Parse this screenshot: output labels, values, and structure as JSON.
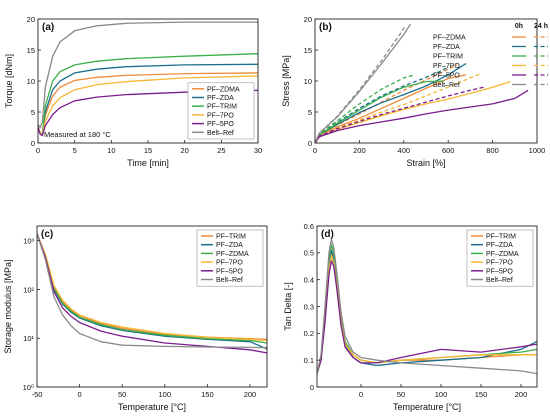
{
  "chart_data": [
    {
      "type": "line",
      "panel": "(a)",
      "xlabel": "Time [min]",
      "ylabel": "Torque [dNm]",
      "xlim": [
        0,
        30
      ],
      "ylim": [
        0,
        20
      ],
      "xticks": [
        0,
        5,
        10,
        15,
        20,
        25,
        30
      ],
      "yticks": [
        0,
        5,
        10,
        15,
        20
      ],
      "annotation": "Measured at 180 °C",
      "legend_position": "bottom-right",
      "series": [
        {
          "name": "PF–ZDMA",
          "color": "#f08b3b",
          "x": [
            0,
            0.3,
            0.6,
            1,
            2,
            3,
            5,
            8,
            12,
            20,
            30
          ],
          "y": [
            2.6,
            1.6,
            1.5,
            4.5,
            7.6,
            9.0,
            10.1,
            10.6,
            10.9,
            11.2,
            11.3
          ]
        },
        {
          "name": "PF–ZDA",
          "color": "#1c6f8c",
          "x": [
            0,
            0.3,
            0.6,
            1,
            2,
            3,
            5,
            8,
            12,
            20,
            30
          ],
          "y": [
            2.6,
            1.6,
            1.5,
            5.0,
            8.6,
            10.0,
            11.3,
            11.9,
            12.3,
            12.6,
            12.7
          ]
        },
        {
          "name": "PF–TRIM",
          "color": "#3cb04a",
          "x": [
            0,
            0.3,
            0.6,
            1,
            2,
            3,
            5,
            8,
            12,
            20,
            30
          ],
          "y": [
            2.6,
            1.6,
            1.5,
            6.0,
            10.0,
            11.5,
            12.6,
            13.2,
            13.6,
            14.0,
            14.4
          ]
        },
        {
          "name": "PF–7PO",
          "color": "#f7b733",
          "x": [
            0,
            0.3,
            0.6,
            1,
            2,
            3,
            5,
            8,
            12,
            20,
            30
          ],
          "y": [
            2.6,
            1.6,
            1.4,
            3.5,
            6.0,
            7.3,
            8.6,
            9.4,
            9.9,
            10.5,
            10.8
          ]
        },
        {
          "name": "PF–5PO",
          "color": "#7b1d8e",
          "x": [
            0,
            0.3,
            0.6,
            1,
            2,
            3,
            5,
            8,
            12,
            20,
            30
          ],
          "y": [
            2.6,
            1.4,
            1.2,
            2.8,
            4.6,
            5.7,
            6.8,
            7.4,
            7.8,
            8.2,
            8.5
          ]
        },
        {
          "name": "Belt–Ref",
          "color": "#8a8a8a",
          "x": [
            0,
            0.3,
            0.6,
            1,
            2,
            3,
            5,
            8,
            12,
            20,
            30
          ],
          "y": [
            3.0,
            2.5,
            3.5,
            9.0,
            14.0,
            16.3,
            18.1,
            18.9,
            19.3,
            19.5,
            19.5
          ]
        }
      ]
    },
    {
      "type": "line",
      "panel": "(b)",
      "xlabel": "Strain [%]",
      "ylabel": "Stress [MPa]",
      "xlim": [
        0,
        1000
      ],
      "ylim": [
        0,
        20
      ],
      "xticks": [
        0,
        200,
        400,
        600,
        800,
        1000
      ],
      "yticks": [
        0,
        5,
        10,
        15,
        20
      ],
      "legend_header": [
        "0h",
        "24 h"
      ],
      "legend_position": "top-right",
      "series": [
        {
          "name": "PF–ZDMA",
          "aging": "0h",
          "color": "#f08b3b",
          "x": [
            0,
            20,
            100,
            200,
            300,
            400,
            500,
            600,
            680
          ],
          "y": [
            0,
            1.2,
            2.6,
            4.0,
            5.6,
            7.2,
            8.8,
            10.4,
            11.0
          ]
        },
        {
          "name": "PF–ZDMA",
          "aging": "24 h",
          "color": "#f08b3b",
          "x": [
            0,
            20,
            100,
            200,
            300,
            400,
            500,
            600,
            640
          ],
          "y": [
            0,
            1.3,
            2.9,
            4.7,
            6.6,
            8.5,
            10.2,
            11.9,
            12.6
          ]
        },
        {
          "name": "PF–ZDA",
          "aging": "0h",
          "color": "#1c6f8c",
          "x": [
            0,
            20,
            100,
            200,
            300,
            400,
            500,
            600,
            680
          ],
          "y": [
            0,
            1.3,
            3.0,
            4.9,
            6.5,
            7.8,
            9.2,
            11.0,
            12.8
          ]
        },
        {
          "name": "PF–ZDA",
          "aging": "24 h",
          "color": "#1c6f8c",
          "x": [
            0,
            20,
            100,
            200,
            300,
            400,
            500,
            560,
            600
          ],
          "y": [
            0,
            1.4,
            3.3,
            5.6,
            7.6,
            9.2,
            10.6,
            11.5,
            12.2
          ]
        },
        {
          "name": "PF–TRIM",
          "aging": "0h",
          "color": "#3cb04a",
          "x": [
            0,
            20,
            100,
            200,
            300,
            400,
            500,
            580
          ],
          "y": [
            0,
            1.3,
            3.2,
            5.3,
            7.4,
            9.0,
            9.9,
            10.0
          ]
        },
        {
          "name": "PF–TRIM",
          "aging": "24 h",
          "color": "#3cb04a",
          "x": [
            0,
            20,
            100,
            200,
            300,
            400,
            450
          ],
          "y": [
            0,
            1.5,
            3.6,
            6.3,
            8.7,
            10.5,
            11.0
          ]
        },
        {
          "name": "PF–7PO",
          "aging": "0h",
          "color": "#f7b733",
          "x": [
            0,
            20,
            100,
            200,
            300,
            400,
            500,
            600,
            700,
            800,
            880
          ],
          "y": [
            0,
            1.0,
            2.2,
            3.3,
            4.4,
            5.4,
            6.3,
            7.1,
            8.0,
            9.0,
            9.9
          ]
        },
        {
          "name": "PF–7PO",
          "aging": "24 h",
          "color": "#f7b733",
          "x": [
            0,
            20,
            100,
            200,
            300,
            400,
            500,
            600,
            700,
            740
          ],
          "y": [
            0,
            1.1,
            2.4,
            3.7,
            5.0,
            6.2,
            7.6,
            9.0,
            10.5,
            11.1
          ]
        },
        {
          "name": "PF–5PO",
          "aging": "0h",
          "color": "#7b1d8e",
          "x": [
            0,
            20,
            100,
            200,
            300,
            400,
            500,
            600,
            700,
            800,
            900,
            960
          ],
          "y": [
            0,
            1.0,
            2.0,
            2.8,
            3.4,
            4.0,
            4.7,
            5.3,
            5.8,
            6.3,
            7.2,
            8.5
          ]
        },
        {
          "name": "PF–5PO",
          "aging": "24 h",
          "color": "#7b1d8e",
          "x": [
            0,
            20,
            100,
            200,
            300,
            400,
            500,
            600,
            700,
            760
          ],
          "y": [
            0,
            1.1,
            2.3,
            3.5,
            4.6,
            5.6,
            6.6,
            7.6,
            8.5,
            9.0
          ]
        },
        {
          "name": "Belt–Ref",
          "aging": "0h",
          "color": "#8a8a8a",
          "x": [
            0,
            20,
            100,
            200,
            300,
            400,
            430
          ],
          "y": [
            0,
            1.6,
            4.2,
            8.3,
            12.8,
            17.5,
            19.2
          ]
        },
        {
          "name": "Belt–Ref",
          "aging": "24 h",
          "color": "#8a8a8a",
          "x": [
            0,
            20,
            100,
            200,
            300,
            380,
            410
          ],
          "y": [
            0,
            1.6,
            4.3,
            8.6,
            13.3,
            17.4,
            19.0
          ]
        }
      ]
    },
    {
      "type": "line",
      "panel": "(c)",
      "xlabel": "Temperature [°C]",
      "ylabel": "Storage modulus [MPa]",
      "xlim": [
        -50,
        220
      ],
      "yscale": "log",
      "ylim": [
        1,
        2000
      ],
      "xticks": [
        -50,
        0,
        50,
        100,
        150,
        200
      ],
      "yticks": [
        1,
        10,
        100,
        1000
      ],
      "ytick_labels": [
        "10⁰",
        "10¹",
        "10²",
        "10³"
      ],
      "legend_position": "top-right",
      "series": [
        {
          "name": "PF–TRIM",
          "color": "#f08b3b",
          "x": [
            -50,
            -40,
            -30,
            -20,
            -10,
            0,
            25,
            50,
            100,
            150,
            200,
            220
          ],
          "y": [
            1400,
            500,
            110,
            55,
            38,
            29,
            20,
            16,
            12,
            10.5,
            9.8,
            9.5
          ]
        },
        {
          "name": "PF–ZDA",
          "color": "#1c6f8c",
          "x": [
            -50,
            -40,
            -30,
            -20,
            -10,
            0,
            25,
            50,
            100,
            150,
            200,
            220
          ],
          "y": [
            1400,
            480,
            100,
            50,
            34,
            26,
            18,
            14.5,
            11,
            9.5,
            8.5,
            6
          ]
        },
        {
          "name": "PF–ZDMA",
          "color": "#3cb04a",
          "x": [
            -50,
            -40,
            -30,
            -20,
            -10,
            0,
            25,
            50,
            100,
            150,
            200,
            220
          ],
          "y": [
            1400,
            490,
            105,
            52,
            36,
            27,
            19,
            15,
            11.5,
            9.8,
            9,
            8
          ]
        },
        {
          "name": "PF–7PO",
          "color": "#f7b733",
          "x": [
            -50,
            -40,
            -30,
            -20,
            -10,
            0,
            25,
            50,
            100,
            150,
            200,
            220
          ],
          "y": [
            1400,
            520,
            120,
            60,
            40,
            30,
            21,
            17,
            12.5,
            10.5,
            9.5,
            9
          ]
        },
        {
          "name": "PF–5PO",
          "color": "#7b1d8e",
          "x": [
            -50,
            -40,
            -30,
            -20,
            -10,
            0,
            25,
            50,
            100,
            150,
            200,
            220
          ],
          "y": [
            1400,
            450,
            90,
            42,
            28,
            21,
            14,
            11,
            8,
            6.8,
            5.8,
            5
          ]
        },
        {
          "name": "Belt–Ref",
          "color": "#8a8a8a",
          "x": [
            -50,
            -40,
            -30,
            -20,
            -10,
            0,
            25,
            50,
            100,
            150,
            200,
            220
          ],
          "y": [
            1400,
            400,
            70,
            30,
            18,
            12.5,
            8.5,
            7.2,
            6.8,
            6.6,
            6.5,
            6.4
          ]
        }
      ]
    },
    {
      "type": "line",
      "panel": "(d)",
      "xlabel": "Temperature [°C]",
      "ylabel": "Tan Delta [-]",
      "xlim": [
        -55,
        220
      ],
      "ylim": [
        0,
        0.6
      ],
      "xticks": [
        0,
        50,
        100,
        150,
        200
      ],
      "yticks": [
        0.0,
        0.1,
        0.2,
        0.3,
        0.4,
        0.5,
        0.6
      ],
      "legend_position": "top-right",
      "series": [
        {
          "name": "PF–TRIM",
          "color": "#f08b3b",
          "x": [
            -55,
            -50,
            -45,
            -40,
            -37,
            -34,
            -30,
            -25,
            -20,
            -10,
            0,
            20,
            50,
            100,
            150,
            200,
            220
          ],
          "y": [
            0.05,
            0.1,
            0.25,
            0.45,
            0.5,
            0.48,
            0.38,
            0.25,
            0.17,
            0.12,
            0.1,
            0.09,
            0.1,
            0.1,
            0.11,
            0.12,
            0.12
          ]
        },
        {
          "name": "PF–ZDA",
          "color": "#1c6f8c",
          "x": [
            -55,
            -50,
            -45,
            -40,
            -37,
            -34,
            -30,
            -25,
            -20,
            -10,
            0,
            20,
            50,
            100,
            150,
            200,
            220
          ],
          "y": [
            0.05,
            0.1,
            0.26,
            0.46,
            0.51,
            0.48,
            0.38,
            0.25,
            0.16,
            0.11,
            0.09,
            0.08,
            0.09,
            0.1,
            0.11,
            0.14,
            0.17
          ]
        },
        {
          "name": "PF–ZDMA",
          "color": "#3cb04a",
          "x": [
            -55,
            -50,
            -45,
            -40,
            -37,
            -34,
            -30,
            -25,
            -20,
            -10,
            0,
            20,
            50,
            100,
            150,
            200,
            220
          ],
          "y": [
            0.05,
            0.1,
            0.27,
            0.48,
            0.53,
            0.5,
            0.4,
            0.26,
            0.17,
            0.12,
            0.1,
            0.09,
            0.1,
            0.11,
            0.12,
            0.13,
            0.14
          ]
        },
        {
          "name": "PF–7PO",
          "color": "#f7b733",
          "x": [
            -55,
            -50,
            -45,
            -40,
            -37,
            -34,
            -30,
            -25,
            -20,
            -10,
            0,
            20,
            50,
            100,
            150,
            200,
            220
          ],
          "y": [
            0.05,
            0.1,
            0.25,
            0.44,
            0.49,
            0.46,
            0.37,
            0.24,
            0.16,
            0.12,
            0.1,
            0.09,
            0.1,
            0.11,
            0.12,
            0.12,
            0.12
          ]
        },
        {
          "name": "PF–5PO",
          "color": "#7b1d8e",
          "x": [
            -55,
            -50,
            -45,
            -40,
            -37,
            -34,
            -30,
            -25,
            -20,
            -10,
            0,
            20,
            50,
            100,
            150,
            200,
            220
          ],
          "y": [
            0.05,
            0.1,
            0.24,
            0.42,
            0.47,
            0.45,
            0.36,
            0.23,
            0.15,
            0.11,
            0.09,
            0.09,
            0.11,
            0.14,
            0.13,
            0.15,
            0.16
          ]
        },
        {
          "name": "Belt–Ref",
          "color": "#8a8a8a",
          "x": [
            -55,
            -50,
            -45,
            -40,
            -37,
            -34,
            -30,
            -25,
            -20,
            -10,
            0,
            20,
            50,
            100,
            150,
            200,
            220
          ],
          "y": [
            0.05,
            0.12,
            0.3,
            0.5,
            0.55,
            0.52,
            0.42,
            0.28,
            0.19,
            0.13,
            0.11,
            0.1,
            0.09,
            0.08,
            0.07,
            0.06,
            0.05
          ]
        }
      ]
    }
  ]
}
